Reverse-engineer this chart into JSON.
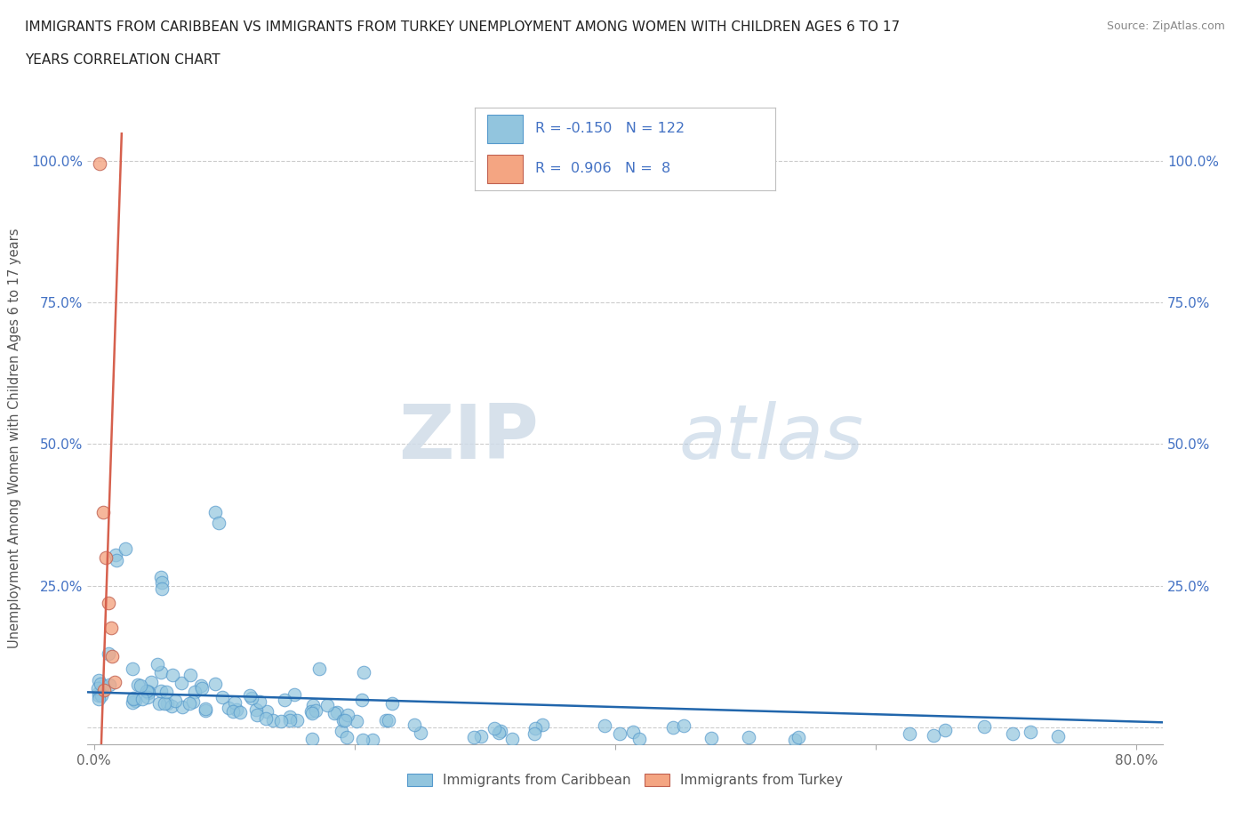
{
  "title_line1": "IMMIGRANTS FROM CARIBBEAN VS IMMIGRANTS FROM TURKEY UNEMPLOYMENT AMONG WOMEN WITH CHILDREN AGES 6 TO 17",
  "title_line2": "YEARS CORRELATION CHART",
  "source": "Source: ZipAtlas.com",
  "ylabel": "Unemployment Among Women with Children Ages 6 to 17 years",
  "xlim": [
    -0.005,
    0.82
  ],
  "ylim": [
    -0.03,
    1.05
  ],
  "xtick_vals": [
    0.0,
    0.2,
    0.4,
    0.6,
    0.8
  ],
  "xticklabels": [
    "0.0%",
    "",
    "",
    "",
    "80.0%"
  ],
  "ytick_vals": [
    0.0,
    0.25,
    0.5,
    0.75,
    1.0
  ],
  "yticklabels_left": [
    "",
    "25.0%",
    "50.0%",
    "75.0%",
    "100.0%"
  ],
  "yticklabels_right": [
    "",
    "25.0%",
    "50.0%",
    "75.0%",
    "100.0%"
  ],
  "caribbean_color": "#92c5de",
  "caribbean_line_color": "#2166ac",
  "turkey_color": "#f4a582",
  "turkey_line_color": "#d6604d",
  "caribbean_R": -0.15,
  "caribbean_N": 122,
  "turkey_R": 0.906,
  "turkey_N": 8,
  "watermark_ZIP": "ZIP",
  "watermark_atlas": "atlas",
  "background_color": "#ffffff",
  "legend_label_caribbean": "Immigrants from Caribbean",
  "legend_label_turkey": "Immigrants from Turkey",
  "tick_color": "#aaaaaa",
  "label_color": "#4472c4",
  "grid_color": "#cccccc"
}
